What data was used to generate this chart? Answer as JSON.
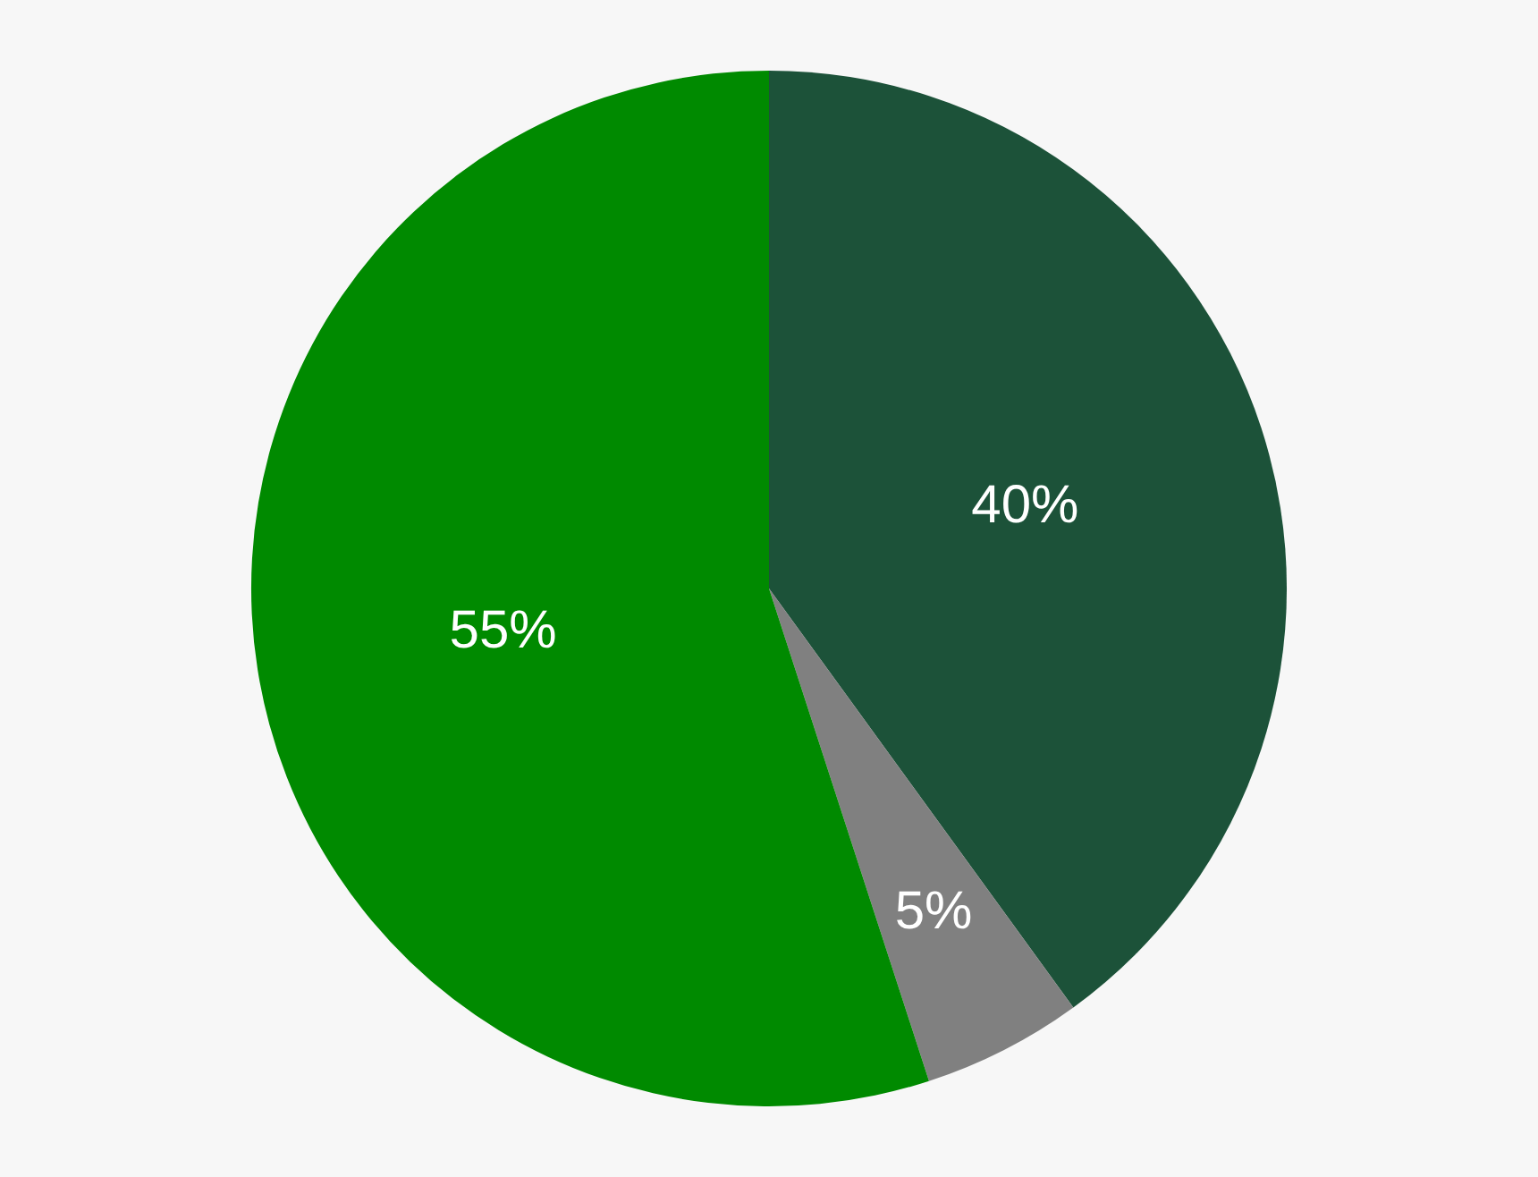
{
  "chart_data": {
    "type": "pie",
    "categories": [
      null,
      null,
      null
    ],
    "values": [
      40,
      5,
      55
    ],
    "colors": [
      "#1c5239",
      "#808080",
      "#008a00"
    ],
    "value_labels": [
      "40%",
      "5%",
      "55%"
    ]
  }
}
